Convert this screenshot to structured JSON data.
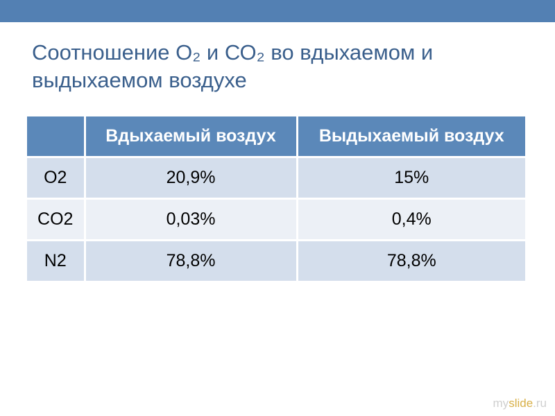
{
  "title": {
    "text": "Соотношение О₂ и СО₂ во вдыхаемом и выдыхаемом воздухе",
    "color": "#3a5f8c",
    "fontsize": 31
  },
  "top_bar_color": "#5380b3",
  "table": {
    "header_bg": "#5b88b9",
    "header_text_color": "#ffffff",
    "row_odd_bg": "#d4deec",
    "row_even_bg": "#ecf0f6",
    "cell_text_color": "#000000",
    "fontsize": 25,
    "columns": [
      "",
      "Вдыхаемый воздух",
      "Выдыхаемый воздух"
    ],
    "rows": [
      {
        "label": "O2",
        "inhaled": "20,9%",
        "exhaled": "15%"
      },
      {
        "label": "CO2",
        "inhaled": "0,03%",
        "exhaled": "0,4%"
      },
      {
        "label": "N2",
        "inhaled": "78,8%",
        "exhaled": "78,8%"
      }
    ]
  },
  "watermark": {
    "part1": "my",
    "part2": "slide",
    "part3": ".ru",
    "color1": "#cfcfcf",
    "color2": "#d8b048"
  }
}
